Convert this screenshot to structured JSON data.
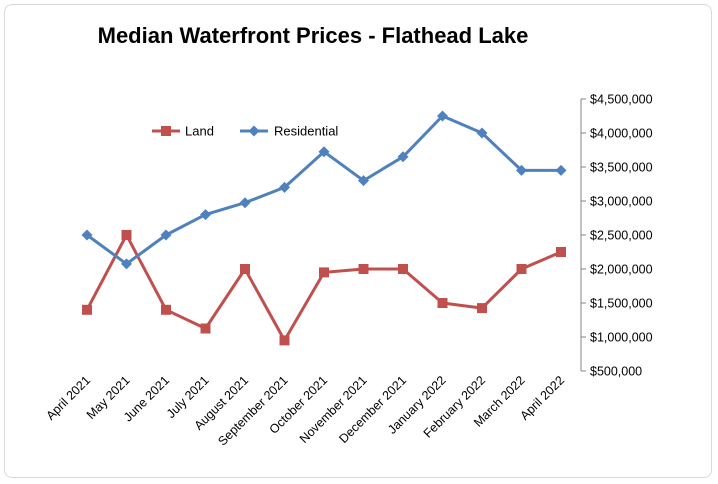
{
  "chart_data": {
    "type": "line",
    "title": "Median Waterfront Prices - Flathead Lake",
    "xlabel": "",
    "ylabel": "",
    "categories": [
      "April 2021",
      "May 2021",
      "June 2021",
      "July 2021",
      "August 2021",
      "September 2021",
      "October 2021",
      "November 2021",
      "December 2021",
      "January 2022",
      "February 2022",
      "March 2022",
      "April 2022"
    ],
    "ylim": [
      500000,
      4500000
    ],
    "yticks": [
      500000,
      1000000,
      1500000,
      2000000,
      2500000,
      3000000,
      3500000,
      4000000,
      4500000
    ],
    "ytick_labels": [
      "$500,000",
      "$1,000,000",
      "$1,500,000",
      "$2,000,000",
      "$2,500,000",
      "$3,000,000",
      "$3,500,000",
      "$4,000,000",
      "$4,500,000"
    ],
    "y_axis_side": "right",
    "grid": false,
    "legend_position": "top-left",
    "series": [
      {
        "name": "Land",
        "color": "#c0504d",
        "marker": "square",
        "values": [
          1400000,
          2500000,
          1400000,
          1125000,
          2000000,
          950000,
          1950000,
          2000000,
          2000000,
          1500000,
          1425000,
          2000000,
          2250000
        ]
      },
      {
        "name": "Residential",
        "color": "#4f81bd",
        "marker": "diamond",
        "values": [
          2500000,
          2075000,
          2500000,
          2800000,
          2975000,
          3200000,
          3725000,
          3300000,
          3650000,
          4250000,
          4000000,
          3450000,
          3450000
        ]
      }
    ]
  }
}
